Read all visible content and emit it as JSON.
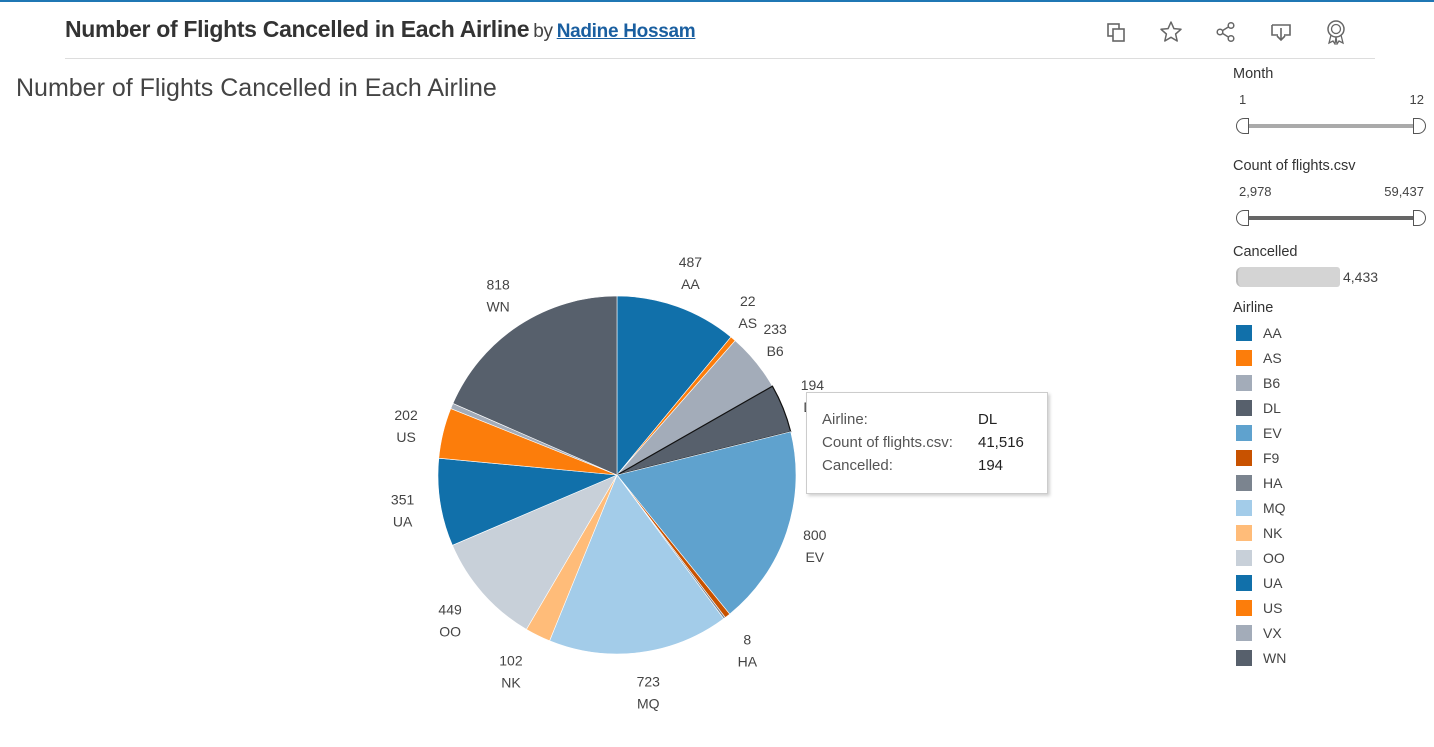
{
  "header": {
    "title": "Number of Flights Cancelled in Each Airline",
    "by": "by",
    "author": "Nadine Hossam"
  },
  "toolbar": {
    "icons": [
      "copy-icon",
      "star-icon",
      "share-icon",
      "download-icon",
      "award-icon"
    ]
  },
  "sheet": {
    "title": "Number of Flights Cancelled in Each Airline"
  },
  "filters": {
    "month": {
      "label": "Month",
      "min": "1",
      "max": "12"
    },
    "count": {
      "label": "Count of flights.csv",
      "min": "2,978",
      "max": "59,437"
    },
    "cancelled": {
      "label": "Cancelled",
      "value": "4,433"
    }
  },
  "legend": {
    "title": "Airline",
    "items": [
      {
        "label": "AA",
        "color": "#1170aa"
      },
      {
        "label": "AS",
        "color": "#fc7d0b"
      },
      {
        "label": "B6",
        "color": "#a3acb9"
      },
      {
        "label": "DL",
        "color": "#57606c"
      },
      {
        "label": "EV",
        "color": "#5fa2ce"
      },
      {
        "label": "F9",
        "color": "#c85200"
      },
      {
        "label": "HA",
        "color": "#7b848f"
      },
      {
        "label": "MQ",
        "color": "#a3cce9"
      },
      {
        "label": "NK",
        "color": "#ffbc79"
      },
      {
        "label": "OO",
        "color": "#c8d0d9"
      },
      {
        "label": "UA",
        "color": "#1170aa"
      },
      {
        "label": "US",
        "color": "#fc7d0b"
      },
      {
        "label": "VX",
        "color": "#a3acb9"
      },
      {
        "label": "WN",
        "color": "#57606c"
      }
    ]
  },
  "tooltip": {
    "rows": [
      {
        "key": "Airline:",
        "value": "DL"
      },
      {
        "key": "Count of flights.csv:",
        "value": "41,516"
      },
      {
        "key": "Cancelled:",
        "value": "194"
      }
    ]
  },
  "chart_data": {
    "type": "pie",
    "title": "Number of Flights Cancelled in Each Airline",
    "categories": [
      "AA",
      "AS",
      "B6",
      "DL",
      "EV",
      "F9",
      "HA",
      "MQ",
      "NK",
      "OO",
      "UA",
      "US",
      "VX",
      "WN"
    ],
    "values": [
      487,
      22,
      233,
      194,
      800,
      22,
      8,
      723,
      102,
      449,
      351,
      202,
      22,
      818
    ],
    "labels": [
      "487",
      "22",
      "233",
      "194",
      "800",
      "",
      "8",
      "723",
      "102",
      "449",
      "351",
      "202",
      "",
      "818"
    ],
    "colors": [
      "#1170aa",
      "#fc7d0b",
      "#a3acb9",
      "#57606c",
      "#5fa2ce",
      "#c85200",
      "#7b848f",
      "#a3cce9",
      "#ffbc79",
      "#c8d0d9",
      "#1170aa",
      "#fc7d0b",
      "#a3acb9",
      "#57606c"
    ],
    "highlighted": "DL",
    "legend": "right"
  }
}
